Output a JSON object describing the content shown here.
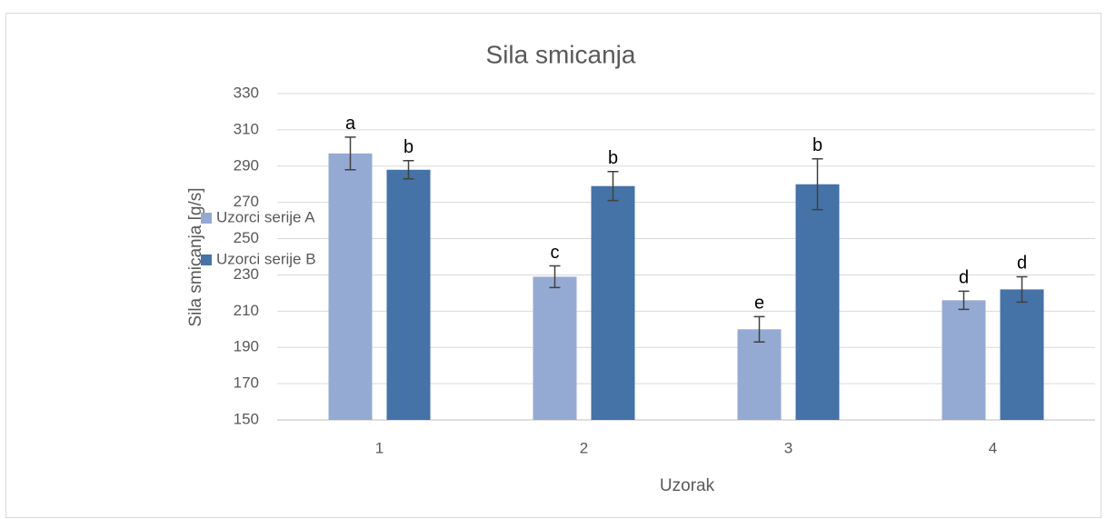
{
  "chart_data": {
    "type": "bar",
    "title": "Sila smicanja",
    "x_label": "Uzorak",
    "y_label": "Sila smicanja [g/s]",
    "categories": [
      "1",
      "2",
      "3",
      "4"
    ],
    "series": [
      {
        "name": "Uzorci serije A",
        "color": "#95aad3",
        "values": [
          297,
          229,
          200,
          216
        ],
        "errors": [
          9,
          6,
          7,
          5
        ],
        "annotations": [
          "a",
          "c",
          "e",
          "d"
        ]
      },
      {
        "name": "Uzorci serije B",
        "color": "#4572a7",
        "values": [
          288,
          279,
          280,
          222
        ],
        "errors": [
          5,
          8,
          14,
          7
        ],
        "annotations": [
          "b",
          "b",
          "b",
          "d"
        ]
      }
    ],
    "ylim": [
      150,
      330
    ],
    "yticks": [
      150,
      170,
      190,
      210,
      230,
      250,
      270,
      290,
      310,
      330
    ],
    "grid": true,
    "legend": "left"
  }
}
